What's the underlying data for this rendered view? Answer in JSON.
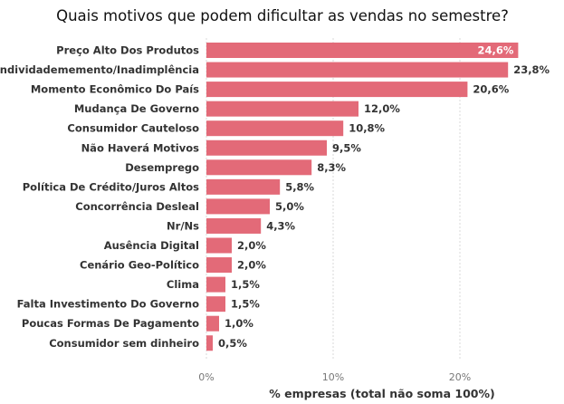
{
  "chart_data": {
    "type": "bar",
    "orientation": "horizontal",
    "title": "Quais motivos que podem dificultar as vendas no semestre?",
    "xlabel": "% empresas (total não soma 100%)",
    "ylabel": "",
    "xlim": [
      0,
      25.5
    ],
    "xticks": [
      0,
      10,
      20
    ],
    "xtick_labels": [
      "0%",
      "10%",
      "20%"
    ],
    "grid": true,
    "bar_color": "#e36a78",
    "categories": [
      "Preço Alto Dos Produtos",
      "Endividadememento/Inadimplência",
      "Momento Econômico Do País",
      "Mudança De Governo",
      "Consumidor Cauteloso",
      "Não Haverá Motivos",
      "Desemprego",
      "Política De Crédito/Juros Altos",
      "Concorrência Desleal",
      "Nr/Ns",
      "Ausência Digital",
      "Cenário Geo-Político",
      "Clima",
      "Falta Investimento Do Governo",
      "Poucas Formas De Pagamento",
      "Consumidor sem dinheiro"
    ],
    "values": [
      24.6,
      23.8,
      20.6,
      12.0,
      10.8,
      9.5,
      8.3,
      5.8,
      5.0,
      4.3,
      2.0,
      2.0,
      1.5,
      1.5,
      1.0,
      0.5
    ],
    "value_labels": [
      "24,6%",
      "23,8%",
      "20,6%",
      "12,0%",
      "10,8%",
      "9,5%",
      "8,3%",
      "5,8%",
      "5,0%",
      "4,3%",
      "2,0%",
      "2,0%",
      "1,5%",
      "1,5%",
      "1,0%",
      "0,5%"
    ]
  }
}
